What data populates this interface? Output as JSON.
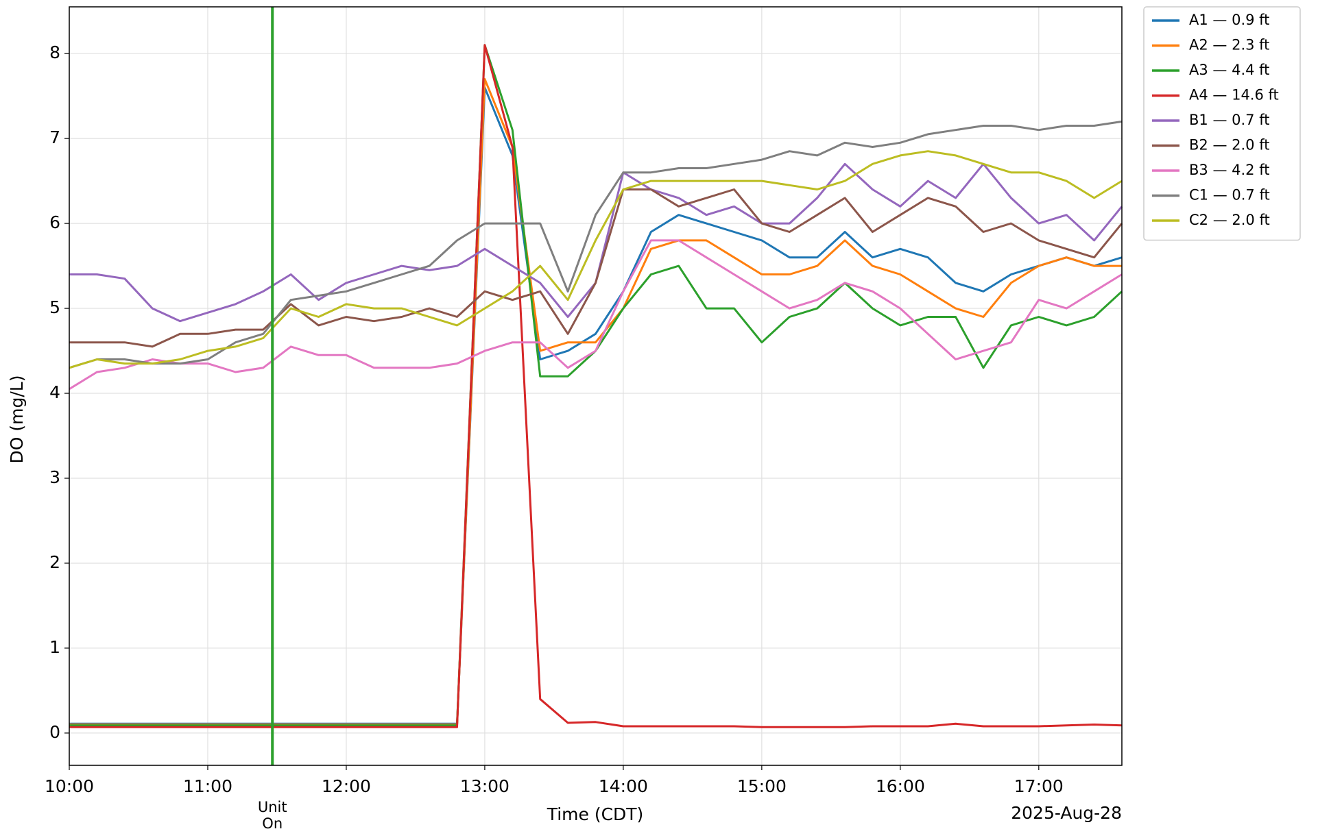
{
  "chart_data": {
    "type": "line",
    "ylabel": "DO (mg/L)",
    "xlabel": "Time (CDT)",
    "date_label": "2025-Aug-28",
    "x": [
      "10:00",
      "10:12",
      "10:24",
      "10:36",
      "10:48",
      "11:00",
      "11:12",
      "11:24",
      "11:36",
      "11:48",
      "12:00",
      "12:12",
      "12:24",
      "12:36",
      "12:48",
      "13:00",
      "13:12",
      "13:24",
      "13:36",
      "13:48",
      "14:00",
      "14:12",
      "14:24",
      "14:36",
      "14:48",
      "15:00",
      "15:12",
      "15:24",
      "15:36",
      "15:48",
      "16:00",
      "16:12",
      "16:24",
      "16:36",
      "16:48",
      "17:00",
      "17:12",
      "17:24",
      "17:36"
    ],
    "xlim": [
      "10:00",
      "17:36"
    ],
    "xticks": [
      "10:00",
      "11:00",
      "12:00",
      "13:00",
      "14:00",
      "15:00",
      "16:00",
      "17:00"
    ],
    "ylim": [
      -0.38,
      8.55
    ],
    "yticks": [
      0,
      1,
      2,
      3,
      4,
      5,
      6,
      7,
      8
    ],
    "grid": true,
    "legend": "outside-upper-right",
    "events": [
      {
        "x": "11:28",
        "color": "#2ca02c",
        "label": [
          "Unit",
          "On"
        ]
      }
    ],
    "series": [
      {
        "name": "A1 — 0.9 ft",
        "color": "#1f77b4",
        "values": [
          0.11,
          0.11,
          0.11,
          0.11,
          0.11,
          0.11,
          0.11,
          0.11,
          0.11,
          0.11,
          0.11,
          0.11,
          0.11,
          0.11,
          0.11,
          7.6,
          6.8,
          4.4,
          4.5,
          4.7,
          5.2,
          5.9,
          6.1,
          6.0,
          5.9,
          5.8,
          5.6,
          5.6,
          5.9,
          5.6,
          5.7,
          5.6,
          5.3,
          5.2,
          5.4,
          5.5,
          5.6,
          5.5,
          5.6
        ]
      },
      {
        "name": "A2 — 2.3 ft",
        "color": "#ff7f0e",
        "values": [
          0.1,
          0.1,
          0.1,
          0.1,
          0.1,
          0.1,
          0.1,
          0.1,
          0.1,
          0.1,
          0.1,
          0.1,
          0.1,
          0.1,
          0.1,
          7.7,
          6.9,
          4.5,
          4.6,
          4.6,
          5.0,
          5.7,
          5.8,
          5.8,
          5.6,
          5.4,
          5.4,
          5.5,
          5.8,
          5.5,
          5.4,
          5.2,
          5.0,
          4.9,
          5.3,
          5.5,
          5.6,
          5.5,
          5.5
        ]
      },
      {
        "name": "A3 — 4.4 ft",
        "color": "#2ca02c",
        "values": [
          0.09,
          0.09,
          0.09,
          0.09,
          0.09,
          0.09,
          0.09,
          0.09,
          0.09,
          0.09,
          0.09,
          0.09,
          0.09,
          0.09,
          0.09,
          8.1,
          7.1,
          4.2,
          4.2,
          4.5,
          5.0,
          5.4,
          5.5,
          5.0,
          5.0,
          4.6,
          4.9,
          5.0,
          5.3,
          5.0,
          4.8,
          4.9,
          4.9,
          4.3,
          4.8,
          4.9,
          4.8,
          4.9,
          5.2
        ]
      },
      {
        "name": "A4 — 14.6 ft",
        "color": "#d62728",
        "values": [
          0.07,
          0.07,
          0.07,
          0.07,
          0.07,
          0.07,
          0.07,
          0.07,
          0.07,
          0.07,
          0.07,
          0.07,
          0.07,
          0.07,
          0.07,
          8.1,
          6.9,
          0.4,
          0.12,
          0.13,
          0.08,
          0.08,
          0.08,
          0.08,
          0.08,
          0.07,
          0.07,
          0.07,
          0.07,
          0.08,
          0.08,
          0.08,
          0.11,
          0.08,
          0.08,
          0.08,
          0.09,
          0.1,
          0.09
        ]
      },
      {
        "name": "B1 — 0.7 ft",
        "color": "#9467bd",
        "values": [
          5.4,
          5.4,
          5.35,
          5.0,
          4.85,
          4.95,
          5.05,
          5.2,
          5.4,
          5.1,
          5.3,
          5.4,
          5.5,
          5.45,
          5.5,
          5.7,
          5.5,
          5.3,
          4.9,
          5.3,
          6.6,
          6.4,
          6.3,
          6.1,
          6.2,
          6.0,
          6.0,
          6.3,
          6.7,
          6.4,
          6.2,
          6.5,
          6.3,
          6.7,
          6.3,
          6.0,
          6.1,
          5.8,
          6.2
        ]
      },
      {
        "name": "B2 — 2.0 ft",
        "color": "#8c564b",
        "values": [
          4.6,
          4.6,
          4.6,
          4.55,
          4.7,
          4.7,
          4.75,
          4.75,
          5.05,
          4.8,
          4.9,
          4.85,
          4.9,
          5.0,
          4.9,
          5.2,
          5.1,
          5.2,
          4.7,
          5.3,
          6.4,
          6.4,
          6.2,
          6.3,
          6.4,
          6.0,
          5.9,
          6.1,
          6.3,
          5.9,
          6.1,
          6.3,
          6.2,
          5.9,
          6.0,
          5.8,
          5.7,
          5.6,
          6.0
        ]
      },
      {
        "name": "B3 — 4.2 ft",
        "color": "#e377c2",
        "values": [
          4.05,
          4.25,
          4.3,
          4.4,
          4.35,
          4.35,
          4.25,
          4.3,
          4.55,
          4.45,
          4.45,
          4.3,
          4.3,
          4.3,
          4.35,
          4.5,
          4.6,
          4.6,
          4.3,
          4.5,
          5.2,
          5.8,
          5.8,
          5.6,
          5.4,
          5.2,
          5.0,
          5.1,
          5.3,
          5.2,
          5.0,
          4.7,
          4.4,
          4.5,
          4.6,
          5.1,
          5.0,
          5.2,
          5.4
        ]
      },
      {
        "name": "C1 — 0.7 ft",
        "color": "#7f7f7f",
        "values": [
          4.3,
          4.4,
          4.4,
          4.35,
          4.35,
          4.4,
          4.6,
          4.7,
          5.1,
          5.15,
          5.2,
          5.3,
          5.4,
          5.5,
          5.8,
          6.0,
          6.0,
          6.0,
          5.2,
          6.1,
          6.6,
          6.6,
          6.65,
          6.65,
          6.7,
          6.75,
          6.85,
          6.8,
          6.95,
          6.9,
          6.95,
          7.05,
          7.1,
          7.15,
          7.15,
          7.1,
          7.15,
          7.15,
          7.2
        ]
      },
      {
        "name": "C2 — 2.0 ft",
        "color": "#bcbd22",
        "values": [
          4.3,
          4.4,
          4.35,
          4.35,
          4.4,
          4.5,
          4.55,
          4.65,
          5.0,
          4.9,
          5.05,
          5.0,
          5.0,
          4.9,
          4.8,
          5.0,
          5.2,
          5.5,
          5.1,
          5.8,
          6.4,
          6.5,
          6.5,
          6.5,
          6.5,
          6.5,
          6.45,
          6.4,
          6.5,
          6.7,
          6.8,
          6.85,
          6.8,
          6.7,
          6.6,
          6.6,
          6.5,
          6.3,
          6.5
        ]
      }
    ]
  }
}
